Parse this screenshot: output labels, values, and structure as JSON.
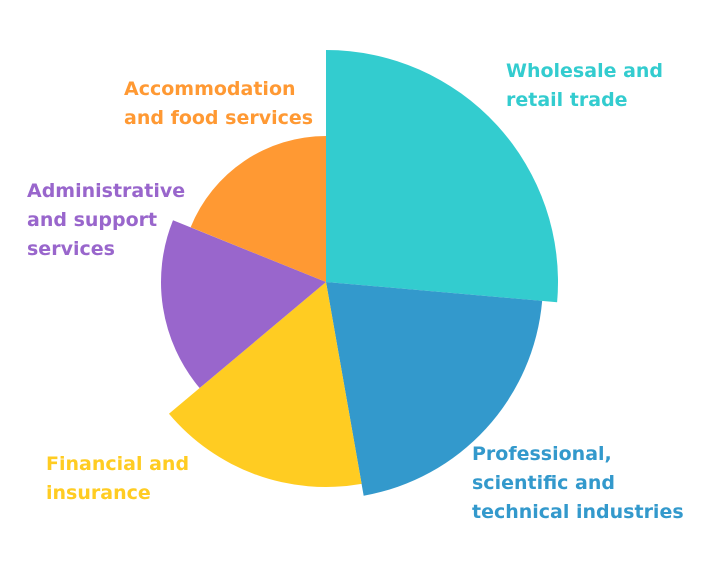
{
  "chart_data": {
    "type": "pie",
    "subtype": "polar-area",
    "title": "",
    "start_angle_deg": 0,
    "categories": [
      "Wholesale and retail trade",
      "Professional, scientific and technical industries",
      "Financial and insurance",
      "Administrative and support services",
      "Accommodation and food services"
    ],
    "label_lines": [
      [
        "Wholesale and",
        "retail trade"
      ],
      [
        "Professional,",
        "scientific and",
        "technical industries"
      ],
      [
        "Financial and",
        "insurance"
      ],
      [
        "Administrative",
        "and support",
        "services"
      ],
      [
        "Accommodation",
        "and food services"
      ]
    ],
    "angles_deg": [
      95,
      75,
      60,
      62,
      68
    ],
    "radii": [
      232,
      217,
      205,
      165,
      146
    ],
    "colors": [
      "#33CCCF",
      "#3399CC",
      "#FFCC22",
      "#9966CC",
      "#FF9933"
    ],
    "legend": "none"
  }
}
